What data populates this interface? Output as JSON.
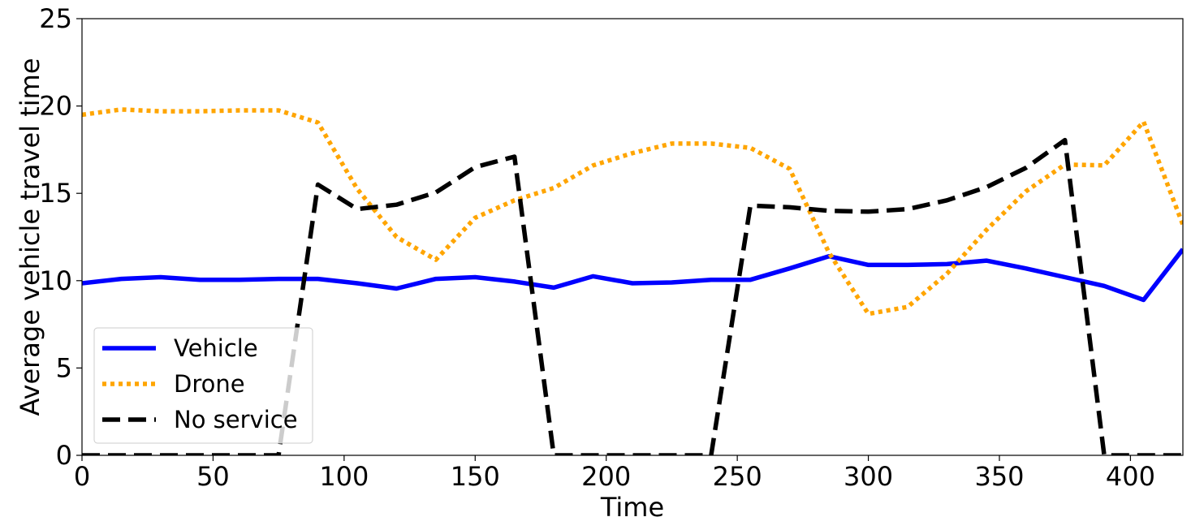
{
  "chart_data": {
    "type": "line",
    "title": "",
    "xlabel": "Time",
    "ylabel": "Average vehicle travel time",
    "xlim": [
      0,
      420
    ],
    "ylim": [
      0,
      25
    ],
    "xticks": [
      0,
      50,
      100,
      150,
      200,
      250,
      300,
      350,
      400
    ],
    "yticks": [
      0,
      5,
      10,
      15,
      20,
      25
    ],
    "grid": false,
    "legend_position": "lower-left",
    "series": [
      {
        "name": "Vehicle",
        "color": "#0000ff",
        "style": "solid",
        "x": [
          0,
          15,
          30,
          45,
          60,
          75,
          90,
          105,
          120,
          135,
          150,
          165,
          180,
          195,
          210,
          225,
          240,
          255,
          270,
          285,
          300,
          315,
          330,
          345,
          360,
          375,
          390,
          405,
          420
        ],
        "y": [
          9.85,
          10.1,
          10.2,
          10.05,
          10.05,
          10.1,
          10.1,
          9.85,
          9.55,
          10.1,
          10.2,
          9.95,
          9.6,
          10.25,
          9.85,
          9.9,
          10.05,
          10.05,
          10.7,
          11.4,
          10.9,
          10.9,
          10.95,
          11.15,
          10.7,
          10.2,
          9.7,
          8.9,
          11.8
        ]
      },
      {
        "name": "Drone",
        "color": "#ffa500",
        "style": "dotted",
        "x": [
          0,
          15,
          30,
          45,
          60,
          75,
          90,
          105,
          120,
          135,
          150,
          165,
          180,
          195,
          210,
          225,
          240,
          255,
          270,
          285,
          300,
          315,
          330,
          345,
          360,
          375,
          390,
          405,
          420
        ],
        "y": [
          19.5,
          19.8,
          19.7,
          19.7,
          19.75,
          19.75,
          19.05,
          15.25,
          12.5,
          11.2,
          13.6,
          14.6,
          15.3,
          16.6,
          17.3,
          17.85,
          17.85,
          17.6,
          16.4,
          11.6,
          8.1,
          8.5,
          10.4,
          12.9,
          15.1,
          16.65,
          16.6,
          19.1,
          13.2
        ]
      },
      {
        "name": "No service",
        "color": "#000000",
        "style": "dashed",
        "x": [
          0,
          15,
          30,
          45,
          60,
          75,
          90,
          105,
          120,
          135,
          150,
          165,
          180,
          195,
          210,
          225,
          240,
          255,
          270,
          285,
          300,
          315,
          330,
          345,
          360,
          375,
          390,
          405,
          420
        ],
        "y": [
          0,
          0,
          0,
          0,
          0,
          0,
          15.5,
          14.1,
          14.35,
          15.05,
          16.5,
          17.1,
          0,
          0,
          0,
          0,
          0,
          14.3,
          14.2,
          14.0,
          13.95,
          14.1,
          14.6,
          15.35,
          16.45,
          18.05,
          0,
          0,
          0
        ]
      }
    ]
  }
}
